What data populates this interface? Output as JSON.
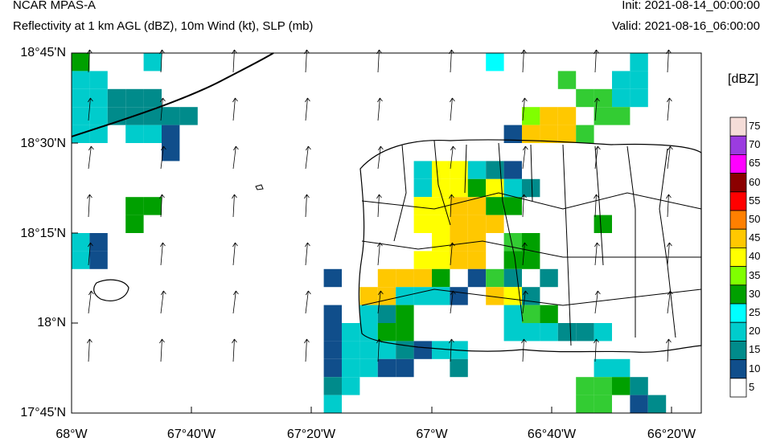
{
  "header": {
    "model": "NCAR MPAS-A",
    "fields": "Reflectivity at 1 km AGL (dBZ), 10m Wind (kt), SLP (mb)",
    "init": "Init: 2021-08-14_00:00:00",
    "valid": "Valid: 2021-08-16_06:00:00"
  },
  "axes": {
    "lat_labels": [
      "18°45'N",
      "18°30'N",
      "18°15'N",
      "18°N",
      "17°45'N"
    ],
    "lon_labels": [
      "68°W",
      "67°40'W",
      "67°20'W",
      "67°W",
      "66°40'W",
      "66°20'W"
    ]
  },
  "colorbar": {
    "title": "[dBZ]",
    "levels": [
      "75",
      "70",
      "65",
      "60",
      "55",
      "50",
      "45",
      "40",
      "35",
      "30",
      "25",
      "20",
      "15",
      "10",
      "5"
    ],
    "colors": [
      "#f5ddd8",
      "#9b3ce0",
      "#ff00ff",
      "#8b0000",
      "#ff0000",
      "#ff8000",
      "#ffc800",
      "#ffff00",
      "#80ff00",
      "#00a000",
      "#00ffff",
      "#00cccc",
      "#008b8b",
      "#104e8b",
      "#ffffff"
    ]
  },
  "reflectivity_grid": [
    "K...F..................L.......F.",
    "HH.........................G..FF.",
    "HHBBB.......................GGFF.",
    "HHBBBBB..................MEE.GG..",
    "HH.HHN..................NEEEG....",
    ".....N...............................",
    "...................HCCHBN........",
    "...................HCCKCHB.......",
    "...KK..............CCEEKK........",
    "...K...............CCEEE.....K...",
    "HN..................CEE.GK.......",
    "HN.................CCEE.KK.......",
    "..............N..EEEK.NGB.B......",
    "................EEFFFN.ECB.......",
    "..............N.HBK.....FGK......",
    "..............NHHKK.....HHHBBH...",
    "..............NHHHBNHH...........",
    "..............NHHNN..B.......HH..",
    "..............BH............GGKB.",
    "..............H.............GG.NB",
    "..............BH...............HN"
  ]
}
